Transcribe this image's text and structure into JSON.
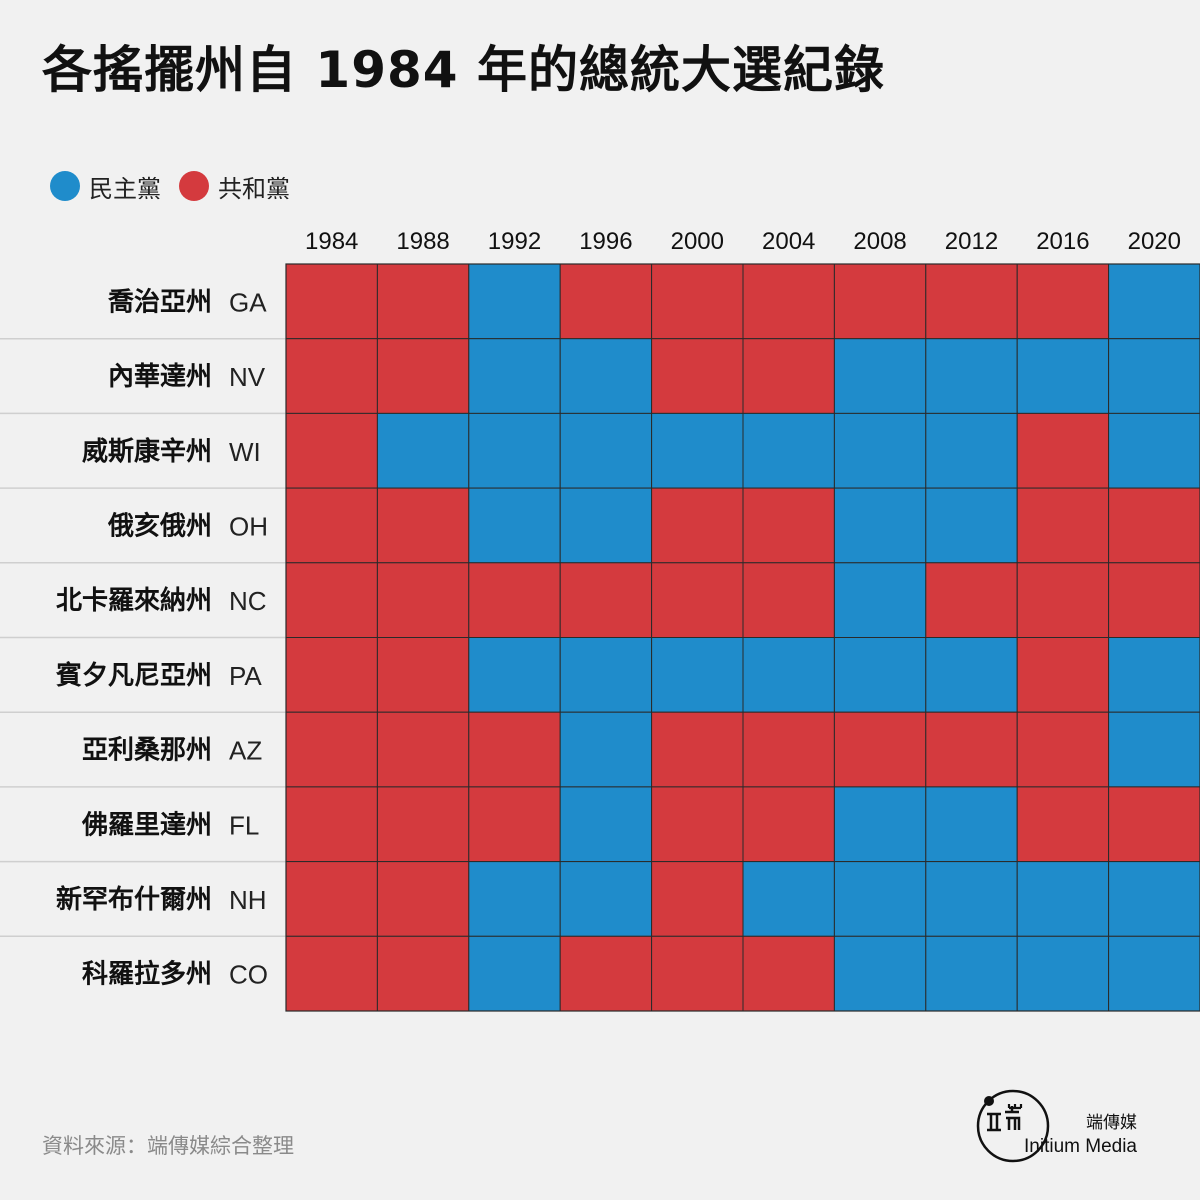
{
  "title": "各搖擺州自 1984 年的總統大選紀錄",
  "legend": [
    {
      "label": "民主黨",
      "color": "#1f8ccb"
    },
    {
      "label": "共和黨",
      "color": "#d43a3e"
    }
  ],
  "colors": {
    "D": "#1f8ccb",
    "R": "#d43a3e",
    "background": "#f1f1f1",
    "gridline": "#2a2a2a",
    "row_divider": "#cfcfcf"
  },
  "source": "資料來源：端傳媒綜合整理",
  "logo": {
    "cn": "端傳媒",
    "en": "Initium Media"
  },
  "chart_data": {
    "type": "heatmap",
    "title": "各搖擺州自 1984 年的總統大選紀錄",
    "years": [
      "1984",
      "1988",
      "1992",
      "1996",
      "2000",
      "2004",
      "2008",
      "2012",
      "2016",
      "2020"
    ],
    "states": [
      {
        "name": "喬治亞州",
        "code": "GA",
        "results": [
          "R",
          "R",
          "D",
          "R",
          "R",
          "R",
          "R",
          "R",
          "R",
          "D"
        ]
      },
      {
        "name": "內華達州",
        "code": "NV",
        "results": [
          "R",
          "R",
          "D",
          "D",
          "R",
          "R",
          "D",
          "D",
          "D",
          "D"
        ]
      },
      {
        "name": "威斯康辛州",
        "code": "WI",
        "results": [
          "R",
          "D",
          "D",
          "D",
          "D",
          "D",
          "D",
          "D",
          "R",
          "D"
        ]
      },
      {
        "name": "俄亥俄州",
        "code": "OH",
        "results": [
          "R",
          "R",
          "D",
          "D",
          "R",
          "R",
          "D",
          "D",
          "R",
          "R"
        ]
      },
      {
        "name": "北卡羅來納州",
        "code": "NC",
        "results": [
          "R",
          "R",
          "R",
          "R",
          "R",
          "R",
          "D",
          "R",
          "R",
          "R"
        ]
      },
      {
        "name": "賓夕凡尼亞州",
        "code": "PA",
        "results": [
          "R",
          "R",
          "D",
          "D",
          "D",
          "D",
          "D",
          "D",
          "R",
          "D"
        ]
      },
      {
        "name": "亞利桑那州",
        "code": "AZ",
        "results": [
          "R",
          "R",
          "R",
          "D",
          "R",
          "R",
          "R",
          "R",
          "R",
          "D"
        ]
      },
      {
        "name": "佛羅里達州",
        "code": "FL",
        "results": [
          "R",
          "R",
          "R",
          "D",
          "R",
          "R",
          "D",
          "D",
          "R",
          "R"
        ]
      },
      {
        "name": "新罕布什爾州",
        "code": "NH",
        "results": [
          "R",
          "R",
          "D",
          "D",
          "R",
          "D",
          "D",
          "D",
          "D",
          "D"
        ]
      },
      {
        "name": "科羅拉多州",
        "code": "CO",
        "results": [
          "R",
          "R",
          "D",
          "R",
          "R",
          "R",
          "D",
          "D",
          "D",
          "D"
        ]
      }
    ]
  }
}
